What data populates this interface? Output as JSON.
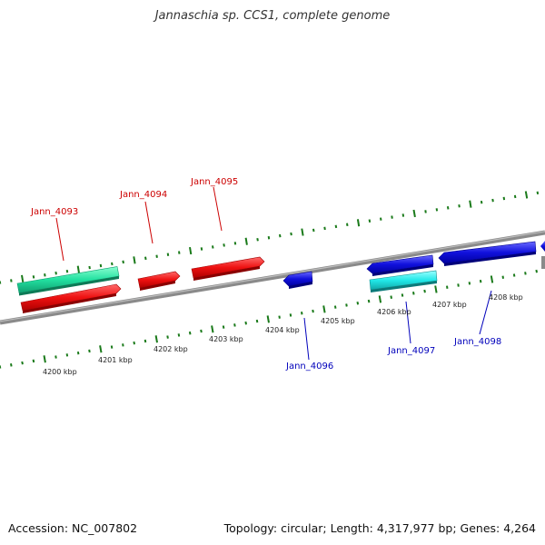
{
  "title": "Jannaschia sp. CCS1, complete genome",
  "footer": {
    "accession": "Accession: NC_007802",
    "summary": "Topology: circular; Length: 4,317,977 bp; Genes: 4,264"
  },
  "colors": {
    "backbone": "#8a8a8a",
    "tick": "#1a7a1a",
    "forward_gene": "#ee1111",
    "reverse_gene": "#1111dd",
    "forward_rna": "#22e0a0",
    "reverse_rna": "#22e8e8",
    "forward_label": "#cc0000",
    "reverse_label": "#0000bb"
  },
  "scale": {
    "tick_labels": [
      "4200 kbp",
      "4201 kbp",
      "4202 kbp",
      "4203 kbp",
      "4204 kbp",
      "4205 kbp",
      "4206 kbp",
      "4207 kbp",
      "4208 kbp"
    ]
  },
  "gene_labels": [
    "Jann_4093",
    "Jann_4094",
    "Jann_4095",
    "Jann_4096",
    "Jann_4097",
    "Jann_4098"
  ]
}
